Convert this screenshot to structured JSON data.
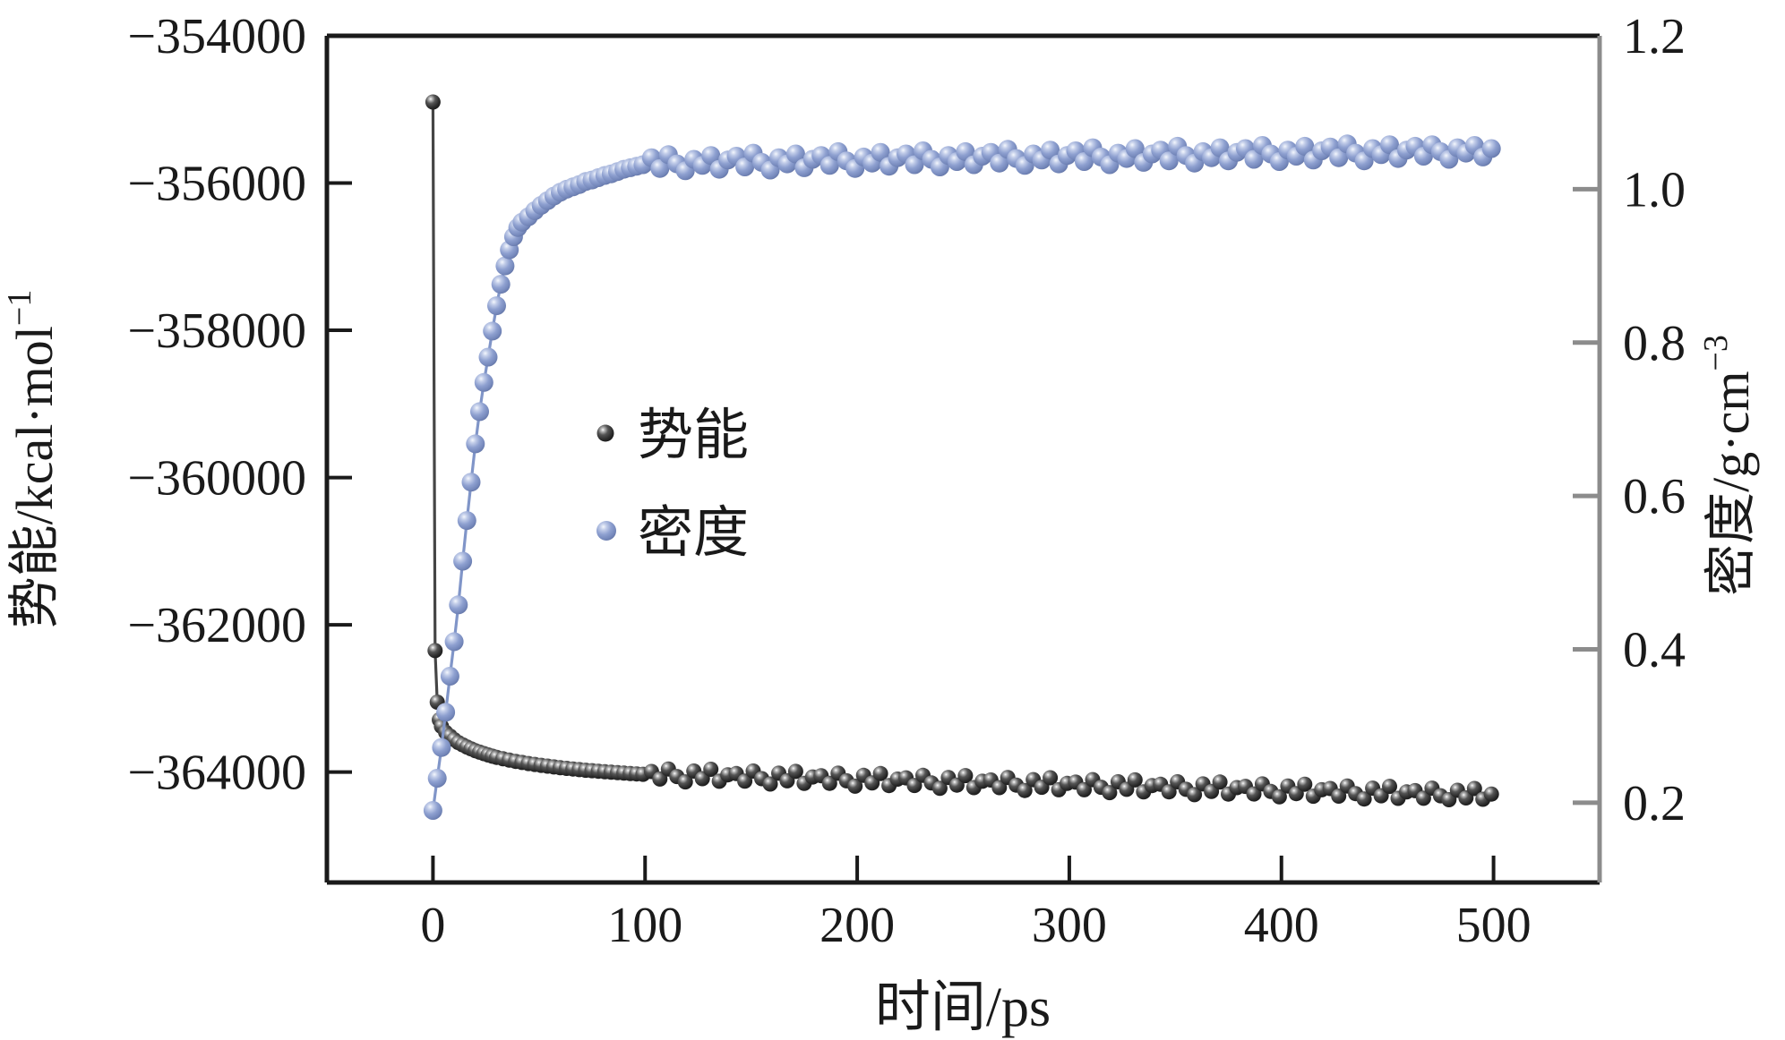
{
  "chart_data": {
    "type": "scatter",
    "title": "",
    "x_axis": {
      "label": "时间/ps",
      "min": -50,
      "max": 550,
      "ticks": [
        0,
        100,
        200,
        300,
        400,
        500
      ],
      "tick_labels": [
        "0",
        "100",
        "200",
        "300",
        "400",
        "500"
      ]
    },
    "y_axis_left": {
      "label_base": "势能/kcal·mol",
      "label_sup": "−1",
      "min": -365500,
      "max": -354000,
      "ticks": [
        -354000,
        -356000,
        -358000,
        -360000,
        -362000,
        -364000
      ],
      "tick_labels": [
        "−354000",
        "−356000",
        "−358000",
        "−360000",
        "−362000",
        "−364000"
      ]
    },
    "y_axis_right": {
      "label_base": "密度/g·cm",
      "label_sup": "−3",
      "min": 0.096,
      "max": 1.2,
      "ticks": [
        1.2,
        1.0,
        0.8,
        0.6,
        0.4,
        0.2
      ],
      "tick_labels": [
        "1.2",
        "1.0",
        "0.8",
        "0.6",
        "0.4",
        "0.2"
      ]
    },
    "legend": [
      {
        "label": "势能",
        "marker": "dark-sphere"
      },
      {
        "label": "密度",
        "marker": "blue-sphere"
      }
    ],
    "colors": {
      "frame": "#1a1a1a",
      "right_frame": "#8c8c8c",
      "pe_line": "#454545",
      "pe_ball_body": "#2b2b2b",
      "density_line": "#8095c8",
      "density_ball_body": "#7d90c4",
      "background": "#ffffff"
    },
    "grid": false,
    "legend_position": "inside-left-center",
    "series": [
      {
        "name": "势能",
        "axis": "left",
        "marker": "dark-sphere",
        "points": [
          [
            0,
            -354900
          ],
          [
            1,
            -362350
          ],
          [
            2,
            -363050
          ],
          [
            3,
            -363290
          ],
          [
            4,
            -363380
          ],
          [
            6,
            -363460
          ],
          [
            8,
            -363510
          ],
          [
            10,
            -363560
          ],
          [
            12,
            -363600
          ],
          [
            14,
            -363630
          ],
          [
            16,
            -363660
          ],
          [
            18,
            -363685
          ],
          [
            20,
            -363710
          ],
          [
            22,
            -363730
          ],
          [
            24,
            -363750
          ],
          [
            26,
            -363768
          ],
          [
            28,
            -363785
          ],
          [
            30,
            -363800
          ],
          [
            33,
            -363820
          ],
          [
            36,
            -363838
          ],
          [
            39,
            -363855
          ],
          [
            42,
            -363870
          ],
          [
            45,
            -363884
          ],
          [
            48,
            -363897
          ],
          [
            51,
            -363909
          ],
          [
            54,
            -363920
          ],
          [
            57,
            -363931
          ],
          [
            60,
            -363941
          ],
          [
            63,
            -363950
          ],
          [
            66,
            -363959
          ],
          [
            69,
            -363967
          ],
          [
            72,
            -363975
          ],
          [
            75,
            -363982
          ],
          [
            78,
            -363989
          ],
          [
            81,
            -363996
          ],
          [
            84,
            -364002
          ],
          [
            87,
            -364008
          ],
          [
            90,
            -364014
          ],
          [
            93,
            -364020
          ],
          [
            96,
            -364025
          ],
          [
            99,
            -364030
          ],
          [
            103,
            -363992
          ],
          [
            107,
            -364095
          ],
          [
            111,
            -363958
          ],
          [
            115,
            -364061
          ],
          [
            119,
            -364134
          ],
          [
            123,
            -363987
          ],
          [
            127,
            -364090
          ],
          [
            131,
            -363962
          ],
          [
            135,
            -364125
          ],
          [
            139,
            -364038
          ],
          [
            143,
            -364021
          ],
          [
            147,
            -364124
          ],
          [
            151,
            -363987
          ],
          [
            155,
            -364090
          ],
          [
            159,
            -364163
          ],
          [
            163,
            -364016
          ],
          [
            167,
            -364119
          ],
          [
            171,
            -363991
          ],
          [
            175,
            -364154
          ],
          [
            179,
            -364067
          ],
          [
            183,
            -364050
          ],
          [
            187,
            -364153
          ],
          [
            191,
            -364016
          ],
          [
            195,
            -364119
          ],
          [
            199,
            -364192
          ],
          [
            203,
            -364045
          ],
          [
            207,
            -364148
          ],
          [
            211,
            -364020
          ],
          [
            215,
            -364183
          ],
          [
            219,
            -364096
          ],
          [
            223,
            -364079
          ],
          [
            227,
            -364182
          ],
          [
            231,
            -364045
          ],
          [
            235,
            -364148
          ],
          [
            239,
            -364221
          ],
          [
            243,
            -364074
          ],
          [
            247,
            -364177
          ],
          [
            251,
            -364049
          ],
          [
            255,
            -364212
          ],
          [
            259,
            -364125
          ],
          [
            263,
            -364108
          ],
          [
            267,
            -364211
          ],
          [
            271,
            -364074
          ],
          [
            275,
            -364177
          ],
          [
            279,
            -364250
          ],
          [
            283,
            -364103
          ],
          [
            287,
            -364206
          ],
          [
            291,
            -364078
          ],
          [
            295,
            -364241
          ],
          [
            299,
            -364154
          ],
          [
            303,
            -364137
          ],
          [
            307,
            -364240
          ],
          [
            311,
            -364103
          ],
          [
            315,
            -364206
          ],
          [
            319,
            -364279
          ],
          [
            323,
            -364132
          ],
          [
            327,
            -364235
          ],
          [
            331,
            -364107
          ],
          [
            335,
            -364270
          ],
          [
            339,
            -364183
          ],
          [
            343,
            -364166
          ],
          [
            347,
            -364269
          ],
          [
            351,
            -364132
          ],
          [
            355,
            -364235
          ],
          [
            359,
            -364308
          ],
          [
            363,
            -364161
          ],
          [
            367,
            -364264
          ],
          [
            371,
            -364136
          ],
          [
            375,
            -364299
          ],
          [
            379,
            -364212
          ],
          [
            383,
            -364195
          ],
          [
            387,
            -364298
          ],
          [
            391,
            -364161
          ],
          [
            395,
            -364264
          ],
          [
            399,
            -364337
          ],
          [
            403,
            -364190
          ],
          [
            407,
            -364293
          ],
          [
            411,
            -364165
          ],
          [
            415,
            -364328
          ],
          [
            419,
            -364241
          ],
          [
            423,
            -364224
          ],
          [
            427,
            -364327
          ],
          [
            431,
            -364190
          ],
          [
            435,
            -364293
          ],
          [
            439,
            -364366
          ],
          [
            443,
            -364219
          ],
          [
            447,
            -364322
          ],
          [
            451,
            -364194
          ],
          [
            455,
            -364357
          ],
          [
            459,
            -364270
          ],
          [
            463,
            -364253
          ],
          [
            467,
            -364356
          ],
          [
            471,
            -364219
          ],
          [
            475,
            -364322
          ],
          [
            479,
            -364375
          ],
          [
            483,
            -364248
          ],
          [
            487,
            -364351
          ],
          [
            491,
            -364223
          ],
          [
            495,
            -364370
          ],
          [
            499,
            -364299
          ]
        ]
      },
      {
        "name": "密度",
        "axis": "right",
        "marker": "blue-sphere",
        "points": [
          [
            0,
            0.19
          ],
          [
            2,
            0.232
          ],
          [
            4,
            0.272
          ],
          [
            6,
            0.318
          ],
          [
            8,
            0.365
          ],
          [
            10,
            0.41
          ],
          [
            12,
            0.458
          ],
          [
            14,
            0.515
          ],
          [
            16,
            0.568
          ],
          [
            18,
            0.618
          ],
          [
            20,
            0.668
          ],
          [
            22,
            0.71
          ],
          [
            24,
            0.748
          ],
          [
            26,
            0.781
          ],
          [
            28,
            0.815
          ],
          [
            30,
            0.848
          ],
          [
            32,
            0.876
          ],
          [
            34,
            0.9
          ],
          [
            36,
            0.921
          ],
          [
            38,
            0.938
          ],
          [
            40,
            0.95
          ],
          [
            42,
            0.957
          ],
          [
            45,
            0.964
          ],
          [
            48,
            0.972
          ],
          [
            51,
            0.979
          ],
          [
            54,
            0.985
          ],
          [
            57,
            0.991
          ],
          [
            60,
            0.996
          ],
          [
            63,
            1.0
          ],
          [
            66,
            1.003
          ],
          [
            69,
            1.006
          ],
          [
            72,
            1.01
          ],
          [
            75,
            1.012
          ],
          [
            78,
            1.015
          ],
          [
            81,
            1.018
          ],
          [
            84,
            1.02
          ],
          [
            87,
            1.023
          ],
          [
            90,
            1.026
          ],
          [
            93,
            1.028
          ],
          [
            96,
            1.03
          ],
          [
            99,
            1.032
          ],
          [
            103,
            1.041
          ],
          [
            107,
            1.027
          ],
          [
            111,
            1.045
          ],
          [
            115,
            1.033
          ],
          [
            119,
            1.024
          ],
          [
            123,
            1.039
          ],
          [
            127,
            1.031
          ],
          [
            131,
            1.044
          ],
          [
            135,
            1.026
          ],
          [
            139,
            1.038
          ],
          [
            143,
            1.043
          ],
          [
            147,
            1.029
          ],
          [
            151,
            1.047
          ],
          [
            155,
            1.035
          ],
          [
            159,
            1.025
          ],
          [
            163,
            1.041
          ],
          [
            167,
            1.033
          ],
          [
            171,
            1.046
          ],
          [
            175,
            1.028
          ],
          [
            179,
            1.039
          ],
          [
            183,
            1.044
          ],
          [
            187,
            1.031
          ],
          [
            191,
            1.049
          ],
          [
            195,
            1.037
          ],
          [
            199,
            1.027
          ],
          [
            203,
            1.042
          ],
          [
            207,
            1.034
          ],
          [
            211,
            1.048
          ],
          [
            215,
            1.03
          ],
          [
            219,
            1.041
          ],
          [
            223,
            1.046
          ],
          [
            227,
            1.032
          ],
          [
            231,
            1.05
          ],
          [
            235,
            1.039
          ],
          [
            239,
            1.029
          ],
          [
            243,
            1.044
          ],
          [
            247,
            1.036
          ],
          [
            251,
            1.049
          ],
          [
            255,
            1.032
          ],
          [
            259,
            1.043
          ],
          [
            263,
            1.048
          ],
          [
            267,
            1.034
          ],
          [
            271,
            1.052
          ],
          [
            275,
            1.04
          ],
          [
            279,
            1.031
          ],
          [
            283,
            1.046
          ],
          [
            287,
            1.038
          ],
          [
            291,
            1.051
          ],
          [
            295,
            1.033
          ],
          [
            299,
            1.044
          ],
          [
            303,
            1.05
          ],
          [
            307,
            1.036
          ],
          [
            311,
            1.054
          ],
          [
            315,
            1.042
          ],
          [
            319,
            1.032
          ],
          [
            323,
            1.047
          ],
          [
            327,
            1.04
          ],
          [
            331,
            1.053
          ],
          [
            335,
            1.035
          ],
          [
            339,
            1.046
          ],
          [
            343,
            1.051
          ],
          [
            347,
            1.037
          ],
          [
            351,
            1.056
          ],
          [
            355,
            1.044
          ],
          [
            359,
            1.034
          ],
          [
            363,
            1.049
          ],
          [
            367,
            1.041
          ],
          [
            371,
            1.054
          ],
          [
            375,
            1.037
          ],
          [
            379,
            1.048
          ],
          [
            383,
            1.053
          ],
          [
            387,
            1.039
          ],
          [
            391,
            1.057
          ],
          [
            395,
            1.046
          ],
          [
            399,
            1.036
          ],
          [
            403,
            1.051
          ],
          [
            407,
            1.043
          ],
          [
            411,
            1.056
          ],
          [
            415,
            1.038
          ],
          [
            419,
            1.05
          ],
          [
            423,
            1.055
          ],
          [
            427,
            1.041
          ],
          [
            431,
            1.059
          ],
          [
            435,
            1.047
          ],
          [
            439,
            1.037
          ],
          [
            443,
            1.053
          ],
          [
            447,
            1.045
          ],
          [
            451,
            1.058
          ],
          [
            455,
            1.04
          ],
          [
            459,
            1.051
          ],
          [
            463,
            1.056
          ],
          [
            467,
            1.043
          ],
          [
            471,
            1.058
          ],
          [
            475,
            1.049
          ],
          [
            479,
            1.039
          ],
          [
            483,
            1.054
          ],
          [
            487,
            1.047
          ],
          [
            491,
            1.057
          ],
          [
            495,
            1.042
          ],
          [
            499,
            1.053
          ]
        ]
      }
    ]
  }
}
